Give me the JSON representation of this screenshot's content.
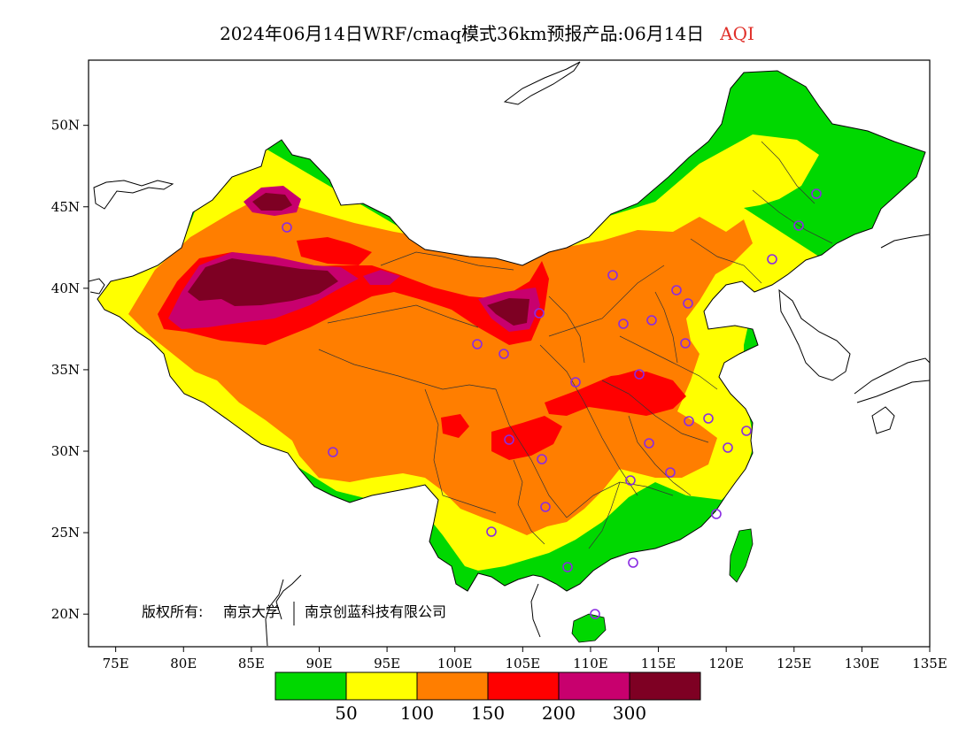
{
  "title": {
    "main": "2024年06月14日WRF/cmaq模式36km预报产品:06月14日",
    "variable": "AQI"
  },
  "axes": {
    "lat_ticks": [
      "50N",
      "45N",
      "40N",
      "35N",
      "30N",
      "25N",
      "20N"
    ],
    "lon_ticks": [
      "75E",
      "80E",
      "85E",
      "90E",
      "95E",
      "100E",
      "105E",
      "110E",
      "115E",
      "120E",
      "125E",
      "130E",
      "135E"
    ],
    "lon_range": [
      73,
      135
    ],
    "lat_range": [
      18,
      54
    ]
  },
  "copyright": {
    "prefix": "版权所有:",
    "org1": "南京大学",
    "org2": "南京创蓝科技有限公司"
  },
  "legend": {
    "labels": [
      "50",
      "100",
      "150",
      "200",
      "300"
    ],
    "colors": [
      "#00d800",
      "#ffff00",
      "#ff7e00",
      "#ff0000",
      "#c8006e",
      "#7e0023"
    ]
  },
  "colors": {
    "good": "#00d800",
    "moderate": "#ffff00",
    "sensitive": "#ff7e00",
    "unhealthy": "#ff0000",
    "very_unhealthy": "#c8006e",
    "hazardous": "#7e0023",
    "station_marker": "#8a2be2"
  }
}
